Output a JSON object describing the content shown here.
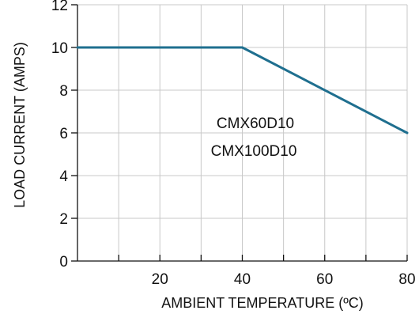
{
  "chart_data": {
    "type": "line",
    "title": "",
    "xlabel": "AMBIENT TEMPERATURE (ºC)",
    "ylabel": "LOAD CURRENT (AMPS)",
    "xlim": [
      0,
      80
    ],
    "ylim": [
      0,
      12
    ],
    "x_ticks": [
      20,
      40,
      60,
      80
    ],
    "x_minor_ticks": [
      10,
      30,
      50,
      70
    ],
    "y_ticks": [
      0,
      2,
      4,
      6,
      8,
      10,
      12
    ],
    "grid": true,
    "legend": "none",
    "annotations": [
      "CMX60D10",
      "CMX100D10"
    ],
    "series": [
      {
        "x": [
          0,
          40,
          80
        ],
        "y": [
          10,
          10,
          6
        ],
        "color": "#1f6f8f"
      }
    ]
  }
}
